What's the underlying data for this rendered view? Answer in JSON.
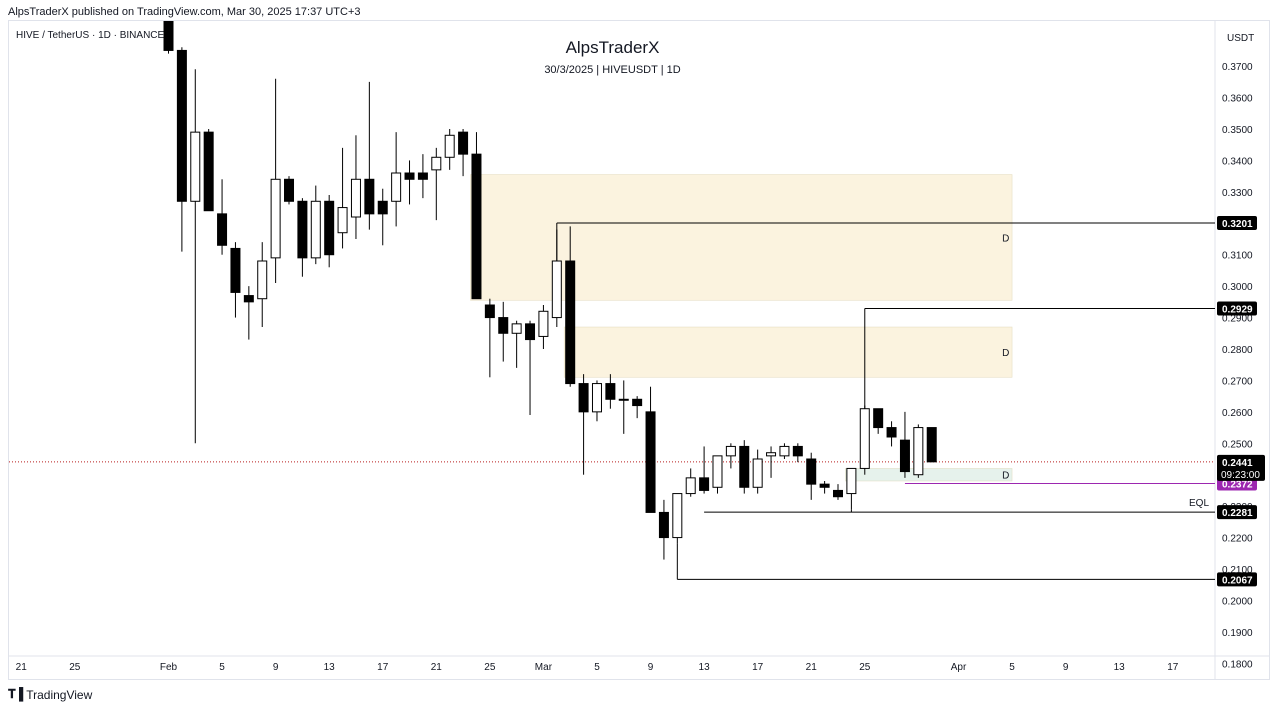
{
  "header": {
    "publisher": "AlpsTraderX published on TradingView.com, Mar 30, 2025 17:37 UTC+3",
    "ticker": "HIVE / TetherUS · 1D · BINANCE"
  },
  "footer": {
    "brand": "TradingView"
  },
  "colors": {
    "up_body": "#ffffff",
    "down_body": "#000000",
    "wick": "#000000",
    "supply_zone": "#fbf3df",
    "demand_zone": "#e6f2ec",
    "last_price_line": "#b71c1c",
    "purple_line": "#9c27b0"
  },
  "chart_data": {
    "type": "candlestick",
    "title": "AlpsTraderX",
    "subtitle": "30/3/2025 | HIVEUSDT | 1D",
    "y_axis_label": "USDT",
    "ylim": [
      0.175,
      0.3815
    ],
    "y_ticks": [
      "0.3700",
      "0.3600",
      "0.3500",
      "0.3400",
      "0.3300",
      "0.3200",
      "0.3100",
      "0.3000",
      "0.2900",
      "0.2800",
      "0.2700",
      "0.2600",
      "0.2500",
      "0.2300",
      "0.2200",
      "0.2100",
      "0.2000",
      "0.1900",
      "0.1800"
    ],
    "x_ticks": [
      {
        "label": "21",
        "day": -11
      },
      {
        "label": "25",
        "day": -7
      },
      {
        "label": "Feb",
        "day": 0
      },
      {
        "label": "5",
        "day": 4
      },
      {
        "label": "9",
        "day": 8
      },
      {
        "label": "13",
        "day": 12
      },
      {
        "label": "17",
        "day": 16
      },
      {
        "label": "21",
        "day": 20
      },
      {
        "label": "25",
        "day": 24
      },
      {
        "label": "Mar",
        "day": 28
      },
      {
        "label": "5",
        "day": 32
      },
      {
        "label": "9",
        "day": 36
      },
      {
        "label": "13",
        "day": 40
      },
      {
        "label": "17",
        "day": 44
      },
      {
        "label": "21",
        "day": 48
      },
      {
        "label": "25",
        "day": 52
      },
      {
        "label": "Apr",
        "day": 59
      },
      {
        "label": "5",
        "day": 63
      },
      {
        "label": "9",
        "day": 67
      },
      {
        "label": "13",
        "day": 71
      },
      {
        "label": "17",
        "day": 75
      }
    ],
    "candles": [
      {
        "day": 0,
        "o": 0.387,
        "h": 0.388,
        "l": 0.374,
        "c": 0.375
      },
      {
        "day": 1,
        "o": 0.375,
        "h": 0.376,
        "l": 0.311,
        "c": 0.327
      },
      {
        "day": 2,
        "o": 0.327,
        "h": 0.369,
        "l": 0.25,
        "c": 0.349
      },
      {
        "day": 3,
        "o": 0.349,
        "h": 0.35,
        "l": 0.324,
        "c": 0.324
      },
      {
        "day": 4,
        "o": 0.323,
        "h": 0.334,
        "l": 0.31,
        "c": 0.313
      },
      {
        "day": 5,
        "o": 0.312,
        "h": 0.314,
        "l": 0.29,
        "c": 0.298
      },
      {
        "day": 6,
        "o": 0.297,
        "h": 0.3,
        "l": 0.283,
        "c": 0.295
      },
      {
        "day": 7,
        "o": 0.296,
        "h": 0.314,
        "l": 0.287,
        "c": 0.308
      },
      {
        "day": 8,
        "o": 0.309,
        "h": 0.366,
        "l": 0.301,
        "c": 0.334
      },
      {
        "day": 9,
        "o": 0.334,
        "h": 0.335,
        "l": 0.326,
        "c": 0.327
      },
      {
        "day": 10,
        "o": 0.327,
        "h": 0.328,
        "l": 0.303,
        "c": 0.309
      },
      {
        "day": 11,
        "o": 0.309,
        "h": 0.332,
        "l": 0.307,
        "c": 0.327
      },
      {
        "day": 12,
        "o": 0.327,
        "h": 0.329,
        "l": 0.306,
        "c": 0.31
      },
      {
        "day": 13,
        "o": 0.317,
        "h": 0.344,
        "l": 0.312,
        "c": 0.325
      },
      {
        "day": 14,
        "o": 0.322,
        "h": 0.348,
        "l": 0.315,
        "c": 0.334
      },
      {
        "day": 15,
        "o": 0.334,
        "h": 0.365,
        "l": 0.318,
        "c": 0.323
      },
      {
        "day": 16,
        "o": 0.327,
        "h": 0.331,
        "l": 0.313,
        "c": 0.323
      },
      {
        "day": 17,
        "o": 0.327,
        "h": 0.349,
        "l": 0.319,
        "c": 0.336
      },
      {
        "day": 18,
        "o": 0.336,
        "h": 0.34,
        "l": 0.326,
        "c": 0.334
      },
      {
        "day": 19,
        "o": 0.336,
        "h": 0.342,
        "l": 0.328,
        "c": 0.334
      },
      {
        "day": 20,
        "o": 0.337,
        "h": 0.344,
        "l": 0.321,
        "c": 0.341
      },
      {
        "day": 21,
        "o": 0.341,
        "h": 0.35,
        "l": 0.337,
        "c": 0.348
      },
      {
        "day": 22,
        "o": 0.349,
        "h": 0.35,
        "l": 0.335,
        "c": 0.342
      },
      {
        "day": 23,
        "o": 0.342,
        "h": 0.349,
        "l": 0.296,
        "c": 0.296
      },
      {
        "day": 24,
        "o": 0.294,
        "h": 0.296,
        "l": 0.271,
        "c": 0.29
      },
      {
        "day": 25,
        "o": 0.29,
        "h": 0.295,
        "l": 0.276,
        "c": 0.285
      },
      {
        "day": 26,
        "o": 0.285,
        "h": 0.289,
        "l": 0.274,
        "c": 0.288
      },
      {
        "day": 27,
        "o": 0.288,
        "h": 0.289,
        "l": 0.259,
        "c": 0.283
      },
      {
        "day": 28,
        "o": 0.284,
        "h": 0.294,
        "l": 0.28,
        "c": 0.292
      },
      {
        "day": 29,
        "o": 0.29,
        "h": 0.318,
        "l": 0.287,
        "c": 0.308
      },
      {
        "day": 30,
        "o": 0.308,
        "h": 0.319,
        "l": 0.268,
        "c": 0.269
      },
      {
        "day": 31,
        "o": 0.269,
        "h": 0.272,
        "l": 0.24,
        "c": 0.26
      },
      {
        "day": 32,
        "o": 0.26,
        "h": 0.27,
        "l": 0.257,
        "c": 0.269
      },
      {
        "day": 33,
        "o": 0.269,
        "h": 0.272,
        "l": 0.261,
        "c": 0.264
      },
      {
        "day": 34,
        "o": 0.264,
        "h": 0.27,
        "l": 0.253,
        "c": 0.264
      },
      {
        "day": 35,
        "o": 0.264,
        "h": 0.265,
        "l": 0.258,
        "c": 0.262
      },
      {
        "day": 36,
        "o": 0.26,
        "h": 0.268,
        "l": 0.228,
        "c": 0.228
      },
      {
        "day": 37,
        "o": 0.228,
        "h": 0.232,
        "l": 0.213,
        "c": 0.22
      },
      {
        "day": 38,
        "o": 0.22,
        "h": 0.234,
        "l": 0.218,
        "c": 0.234
      },
      {
        "day": 39,
        "o": 0.234,
        "h": 0.242,
        "l": 0.233,
        "c": 0.239
      },
      {
        "day": 40,
        "o": 0.239,
        "h": 0.249,
        "l": 0.234,
        "c": 0.235
      },
      {
        "day": 41,
        "o": 0.236,
        "h": 0.246,
        "l": 0.234,
        "c": 0.246
      },
      {
        "day": 42,
        "o": 0.246,
        "h": 0.25,
        "l": 0.242,
        "c": 0.249
      },
      {
        "day": 43,
        "o": 0.249,
        "h": 0.251,
        "l": 0.234,
        "c": 0.236
      },
      {
        "day": 44,
        "o": 0.236,
        "h": 0.248,
        "l": 0.234,
        "c": 0.245
      },
      {
        "day": 45,
        "o": 0.246,
        "h": 0.249,
        "l": 0.239,
        "c": 0.247
      },
      {
        "day": 46,
        "o": 0.246,
        "h": 0.25,
        "l": 0.245,
        "c": 0.249
      },
      {
        "day": 47,
        "o": 0.249,
        "h": 0.25,
        "l": 0.244,
        "c": 0.246
      },
      {
        "day": 48,
        "o": 0.245,
        "h": 0.247,
        "l": 0.232,
        "c": 0.237
      },
      {
        "day": 49,
        "o": 0.237,
        "h": 0.238,
        "l": 0.234,
        "c": 0.236
      },
      {
        "day": 50,
        "o": 0.235,
        "h": 0.237,
        "l": 0.232,
        "c": 0.233
      },
      {
        "day": 51,
        "o": 0.234,
        "h": 0.242,
        "l": 0.229,
        "c": 0.242
      },
      {
        "day": 52,
        "o": 0.242,
        "h": 0.262,
        "l": 0.24,
        "c": 0.261
      },
      {
        "day": 53,
        "o": 0.261,
        "h": 0.261,
        "l": 0.253,
        "c": 0.255
      },
      {
        "day": 54,
        "o": 0.255,
        "h": 0.257,
        "l": 0.249,
        "c": 0.252
      },
      {
        "day": 55,
        "o": 0.251,
        "h": 0.26,
        "l": 0.239,
        "c": 0.241
      },
      {
        "day": 56,
        "o": 0.24,
        "h": 0.256,
        "l": 0.239,
        "c": 0.255
      },
      {
        "day": 57,
        "o": 0.255,
        "h": 0.255,
        "l": 0.244,
        "c": 0.2441
      }
    ],
    "zones": [
      {
        "from_day": 23,
        "to_day": 63,
        "top": 0.3355,
        "bottom": 0.2955,
        "label": "D",
        "color": "#fbf3df"
      },
      {
        "from_day": 30,
        "to_day": 63,
        "top": 0.287,
        "bottom": 0.271,
        "label": "D",
        "color": "#fbf3df"
      },
      {
        "from_day": 51,
        "to_day": 63,
        "top": 0.242,
        "bottom": 0.238,
        "label": "D",
        "color": "#e6f2ec"
      }
    ],
    "levels": [
      {
        "price": 0.3201,
        "from_day": 29,
        "label": "0.3201"
      },
      {
        "price": 0.2929,
        "from_day": 52,
        "label": "0.2929"
      },
      {
        "price": 0.2281,
        "from_day": 40,
        "label": "0.2281",
        "note": "EQL"
      },
      {
        "price": 0.2067,
        "from_day": 38,
        "label": "0.2067"
      }
    ],
    "purple_level": {
      "price": 0.2372,
      "from_day": 55,
      "label": "0.2372"
    },
    "last_price": {
      "price": 0.2441,
      "label": "0.2441",
      "countdown": "09:23:00"
    }
  }
}
